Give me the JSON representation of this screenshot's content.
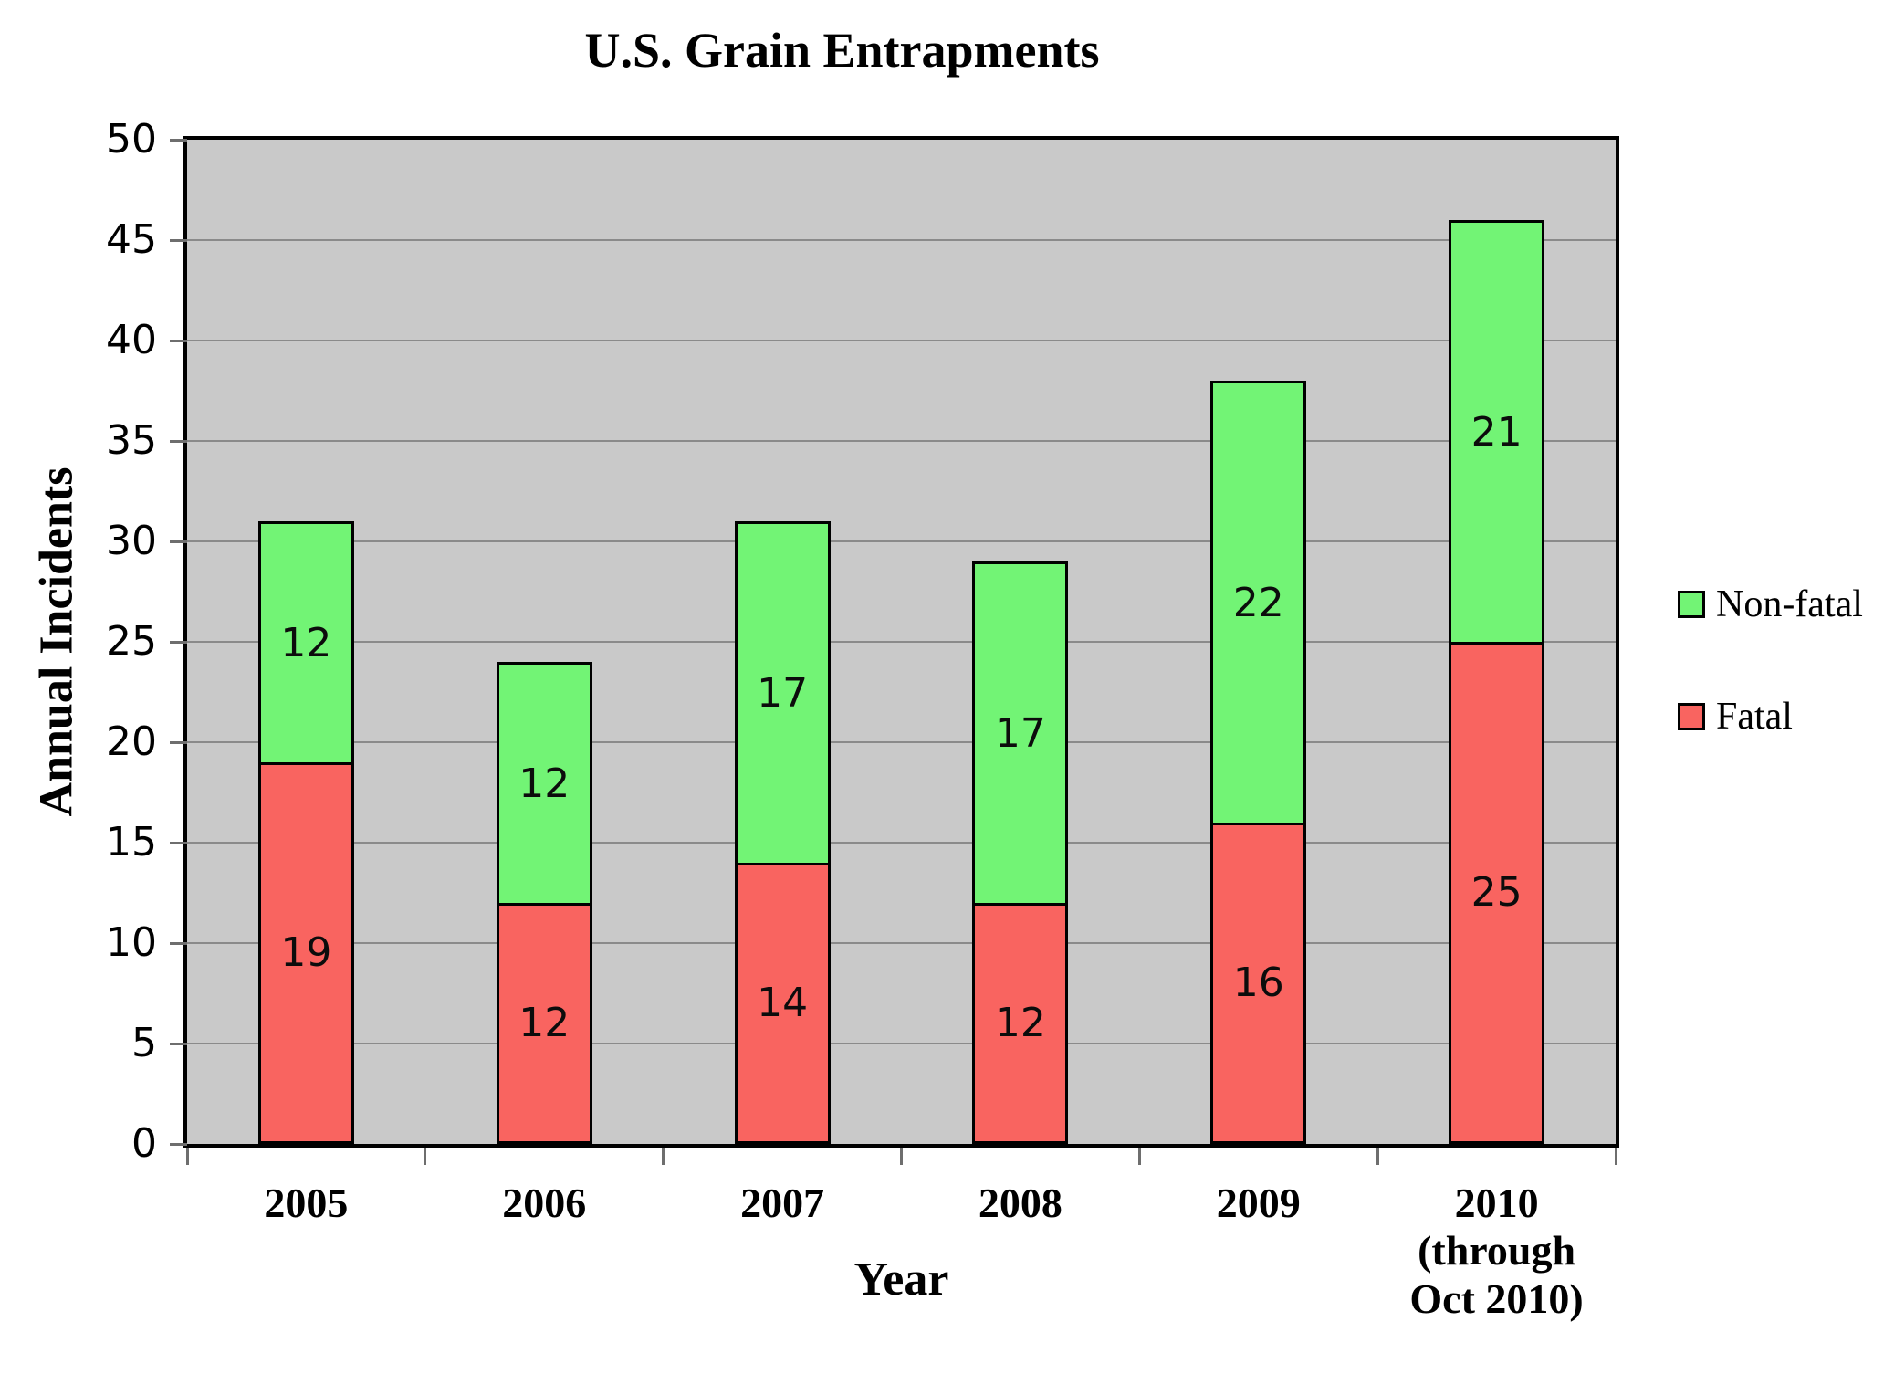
{
  "chart_data": {
    "type": "bar",
    "stacked": true,
    "title": "U.S. Grain Entrapments",
    "xlabel": "Year",
    "ylabel": "Annual Incidents",
    "ylim": [
      0,
      50
    ],
    "ytick_step": 5,
    "categories": [
      "2005",
      "2006",
      "2007",
      "2008",
      "2009",
      "2010\n(through\nOct 2010)"
    ],
    "series": [
      {
        "name": "Fatal",
        "color": "#F96460",
        "values": [
          19,
          12,
          14,
          12,
          16,
          25
        ]
      },
      {
        "name": "Non-fatal",
        "color": "#72F475",
        "values": [
          12,
          12,
          17,
          17,
          22,
          21
        ]
      }
    ],
    "segment_labels": {
      "Fatal": [
        19,
        12,
        14,
        12,
        16,
        25
      ],
      "Non-fatal": [
        12,
        12,
        17,
        17,
        22,
        21
      ]
    },
    "legend": {
      "position": "right",
      "order": [
        "Non-fatal",
        "Fatal"
      ]
    },
    "plot_background": "#C9C9C9",
    "gridline_color": "#8A8A8A",
    "grid": true
  }
}
